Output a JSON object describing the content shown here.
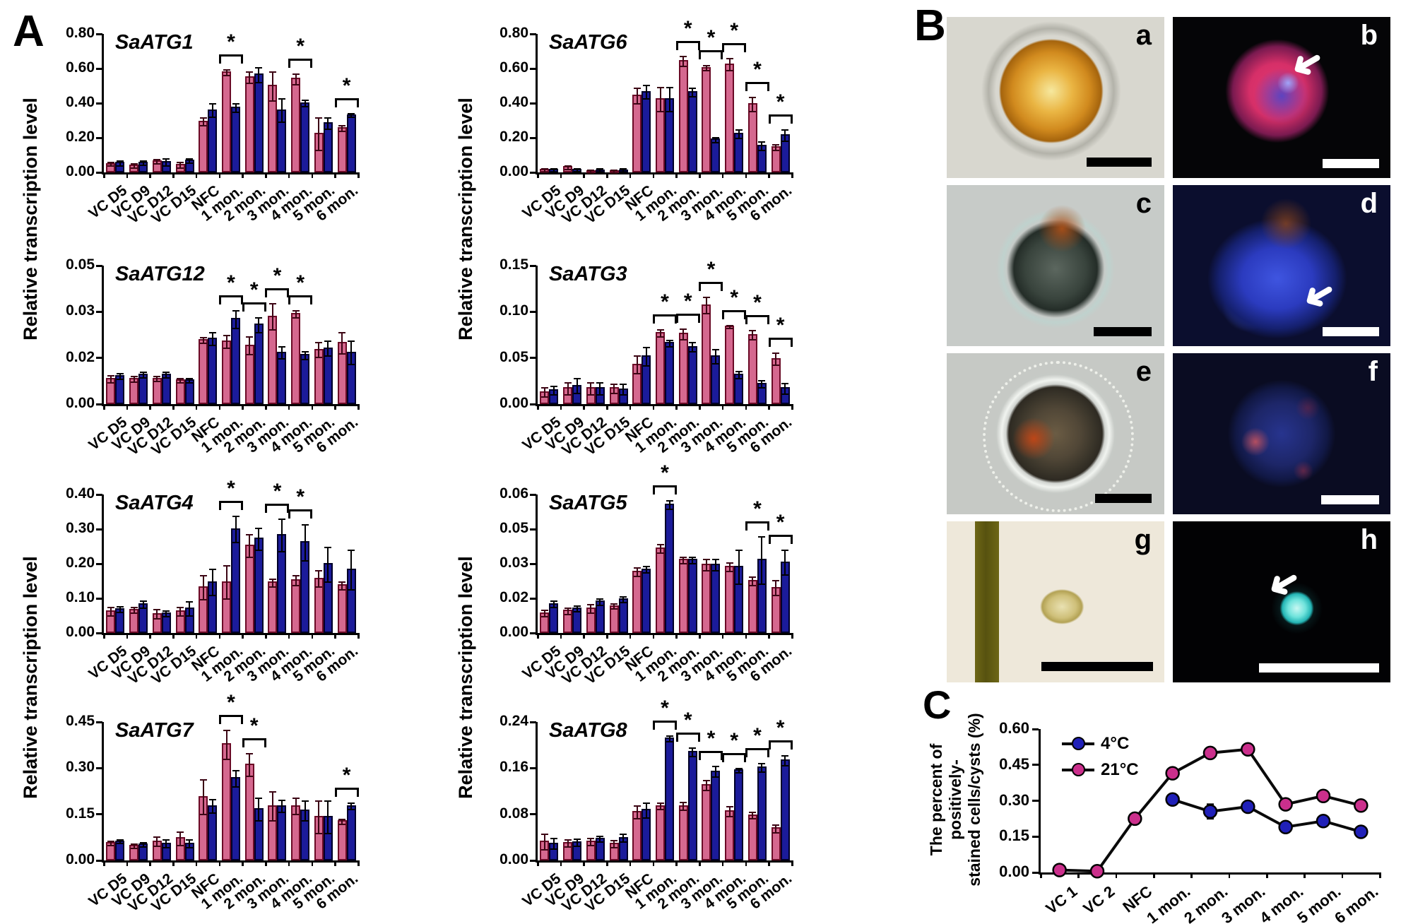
{
  "figure": {
    "panels": {
      "a": "A",
      "b": "B",
      "c": "C"
    },
    "y_axis_label": "Relative transcription level",
    "icons": {
      "arrow": "➜"
    },
    "series_colors": {
      "pink": "#d5688f",
      "blue": "#1b1b9a"
    }
  },
  "chart_data": [
    {
      "type": "bar",
      "title": "SaATG1",
      "ymax": 0.8,
      "yticks": [
        "0.00",
        "0.20",
        "0.40",
        "0.60",
        "0.80"
      ],
      "categories": [
        "VC D5",
        "VC D9",
        "VC D12",
        "VC D15",
        "NFC",
        "1 mon.",
        "2 mon.",
        "3 mon.",
        "4 mon.",
        "5 mon.",
        "6 mon."
      ],
      "series": [
        {
          "name": "pink",
          "color": "#d5688f",
          "border": "#6b0a26",
          "err_color": "#3c0514",
          "values": [
            0.055,
            0.045,
            0.07,
            0.05,
            0.3,
            0.585,
            0.555,
            0.505,
            0.545,
            0.23,
            0.26
          ],
          "errors": [
            0.008,
            0.008,
            0.008,
            0.012,
            0.02,
            0.012,
            0.03,
            0.08,
            0.025,
            0.09,
            0.012
          ]
        },
        {
          "name": "blue",
          "color": "#1b1b9a",
          "border": "#000028",
          "err_color": "#000000",
          "values": [
            0.06,
            0.06,
            0.065,
            0.075,
            0.365,
            0.38,
            0.57,
            0.365,
            0.405,
            0.29,
            0.335
          ],
          "errors": [
            0.01,
            0.008,
            0.015,
            0.008,
            0.035,
            0.02,
            0.04,
            0.065,
            0.015,
            0.03,
            0.006
          ]
        }
      ],
      "sig_categories": [
        "1 mon.",
        "4 mon.",
        "6 mon."
      ]
    },
    {
      "type": "bar",
      "title": "SaATG6",
      "ymax": 0.8,
      "yticks": [
        "0.00",
        "0.20",
        "0.40",
        "0.60",
        "0.80"
      ],
      "categories": [
        "VC D5",
        "VC D9",
        "VC D12",
        "VC D15",
        "NFC",
        "1 mon.",
        "2 mon.",
        "3 mon.",
        "4 mon.",
        "5 mon.",
        "6 mon."
      ],
      "series": [
        {
          "name": "pink",
          "color": "#d5688f",
          "border": "#6b0a26",
          "err_color": "#3c0514",
          "values": [
            0.02,
            0.035,
            0.012,
            0.012,
            0.45,
            0.43,
            0.65,
            0.61,
            0.63,
            0.4,
            0.15
          ],
          "errors": [
            0.006,
            0.006,
            0.004,
            0.004,
            0.04,
            0.065,
            0.025,
            0.012,
            0.03,
            0.035,
            0.012
          ]
        },
        {
          "name": "blue",
          "color": "#1b1b9a",
          "border": "#000028",
          "err_color": "#000000",
          "values": [
            0.02,
            0.02,
            0.018,
            0.018,
            0.47,
            0.43,
            0.47,
            0.195,
            0.23,
            0.16,
            0.22
          ],
          "errors": [
            0.006,
            0.005,
            0.005,
            0.005,
            0.035,
            0.065,
            0.02,
            0.01,
            0.02,
            0.02,
            0.03
          ]
        }
      ],
      "sig_categories": [
        "2 mon.",
        "3 mon.",
        "4 mon.",
        "5 mon.",
        "6 mon."
      ]
    },
    {
      "type": "bar",
      "title": "SaATG12",
      "ymax": 0.05,
      "yticks": [
        "0.00",
        "0.02",
        "0.03",
        "0.05"
      ],
      "categories": [
        "VC D5",
        "VC D9",
        "VC D12",
        "VC D15",
        "NFC",
        "1 mon.",
        "2 mon.",
        "3 mon.",
        "4 mon.",
        "5 mon.",
        "6 mon."
      ],
      "series": [
        {
          "name": "pink",
          "color": "#d5688f",
          "border": "#6b0a26",
          "err_color": "#3c0514",
          "values": [
            0.0095,
            0.0095,
            0.0095,
            0.009,
            0.0235,
            0.023,
            0.0215,
            0.032,
            0.033,
            0.02,
            0.0225
          ],
          "errors": [
            0.001,
            0.0008,
            0.0006,
            0.0005,
            0.0008,
            0.002,
            0.003,
            0.0045,
            0.001,
            0.0025,
            0.0035
          ]
        },
        {
          "name": "blue",
          "color": "#1b1b9a",
          "border": "#000028",
          "err_color": "#000000",
          "values": [
            0.0105,
            0.011,
            0.011,
            0.009,
            0.024,
            0.031,
            0.029,
            0.019,
            0.018,
            0.0205,
            0.019
          ],
          "errors": [
            0.0008,
            0.0008,
            0.0008,
            0.0005,
            0.002,
            0.003,
            0.0025,
            0.002,
            0.0012,
            0.0025,
            0.004
          ]
        }
      ],
      "sig_categories": [
        "1 mon.",
        "2 mon.",
        "3 mon.",
        "4 mon."
      ]
    },
    {
      "type": "bar",
      "title": "SaATG3",
      "ymax": 0.15,
      "yticks": [
        "0.00",
        "0.05",
        "0.10",
        "0.15"
      ],
      "categories": [
        "VC D5",
        "VC D9",
        "VC D12",
        "VC D15",
        "NFC",
        "1 mon.",
        "2 mon.",
        "3 mon.",
        "4 mon.",
        "5 mon.",
        "6 mon."
      ],
      "series": [
        {
          "name": "pink",
          "color": "#d5688f",
          "border": "#6b0a26",
          "err_color": "#3c0514",
          "values": [
            0.014,
            0.018,
            0.018,
            0.018,
            0.044,
            0.078,
            0.077,
            0.108,
            0.085,
            0.076,
            0.05
          ],
          "errors": [
            0.004,
            0.006,
            0.006,
            0.004,
            0.009,
            0.003,
            0.005,
            0.008,
            0.001,
            0.004,
            0.006
          ]
        },
        {
          "name": "blue",
          "color": "#1b1b9a",
          "border": "#000028",
          "err_color": "#000000",
          "values": [
            0.016,
            0.021,
            0.018,
            0.017,
            0.053,
            0.067,
            0.063,
            0.053,
            0.033,
            0.023,
            0.018
          ],
          "errors": [
            0.004,
            0.007,
            0.006,
            0.005,
            0.009,
            0.003,
            0.004,
            0.007,
            0.003,
            0.003,
            0.005
          ]
        }
      ],
      "sig_categories": [
        "1 mon.",
        "2 mon.",
        "3 mon.",
        "4 mon.",
        "5 mon.",
        "6 mon."
      ]
    },
    {
      "type": "bar",
      "title": "SaATG4",
      "ymax": 0.4,
      "yticks": [
        "0.00",
        "0.10",
        "0.20",
        "0.30",
        "0.40"
      ],
      "categories": [
        "VC D5",
        "VC D9",
        "VC D12",
        "VC D15",
        "NFC",
        "1 mon.",
        "2 mon.",
        "3 mon.",
        "4 mon.",
        "5 mon.",
        "6 mon."
      ],
      "series": [
        {
          "name": "pink",
          "color": "#d5688f",
          "border": "#6b0a26",
          "err_color": "#3c0514",
          "values": [
            0.065,
            0.07,
            0.058,
            0.065,
            0.135,
            0.15,
            0.255,
            0.148,
            0.155,
            0.16,
            0.14
          ],
          "errors": [
            0.01,
            0.006,
            0.012,
            0.01,
            0.033,
            0.045,
            0.03,
            0.01,
            0.013,
            0.022,
            0.01
          ]
        },
        {
          "name": "blue",
          "color": "#1b1b9a",
          "border": "#000028",
          "err_color": "#000000",
          "values": [
            0.072,
            0.085,
            0.06,
            0.073,
            0.15,
            0.303,
            0.275,
            0.285,
            0.265,
            0.202,
            0.185
          ],
          "errors": [
            0.006,
            0.008,
            0.006,
            0.018,
            0.035,
            0.035,
            0.03,
            0.045,
            0.05,
            0.048,
            0.055
          ]
        }
      ],
      "sig_categories": [
        "1 mon.",
        "3 mon.",
        "4 mon."
      ]
    },
    {
      "type": "bar",
      "title": "SaATG5",
      "ymax": 0.06,
      "yticks": [
        "0.00",
        "0.02",
        "0.03",
        "0.05",
        "0.06"
      ],
      "categories": [
        "VC D5",
        "VC D9",
        "VC D12",
        "VC D15",
        "NFC",
        "1 mon.",
        "2 mon.",
        "3 mon.",
        "4 mon.",
        "5 mon.",
        "6 mon."
      ],
      "series": [
        {
          "name": "pink",
          "color": "#d5688f",
          "border": "#6b0a26",
          "err_color": "#3c0514",
          "values": [
            0.009,
            0.01,
            0.011,
            0.012,
            0.027,
            0.037,
            0.032,
            0.03,
            0.029,
            0.023,
            0.02
          ],
          "errors": [
            0.001,
            0.001,
            0.0015,
            0.0008,
            0.0015,
            0.0015,
            0.001,
            0.002,
            0.0015,
            0.0015,
            0.003
          ]
        },
        {
          "name": "blue",
          "color": "#1b1b9a",
          "border": "#000028",
          "err_color": "#000000",
          "values": [
            0.013,
            0.011,
            0.014,
            0.015,
            0.028,
            0.056,
            0.032,
            0.03,
            0.029,
            0.032,
            0.031
          ],
          "errors": [
            0.001,
            0.001,
            0.001,
            0.0008,
            0.001,
            0.0015,
            0.001,
            0.002,
            0.007,
            0.01,
            0.005
          ]
        }
      ],
      "sig_categories": [
        "1 mon.",
        "5 mon.",
        "6 mon."
      ]
    },
    {
      "type": "bar",
      "title": "SaATG7",
      "ymax": 0.45,
      "yticks": [
        "0.00",
        "0.15",
        "0.30",
        "0.45"
      ],
      "categories": [
        "VC D5",
        "VC D9",
        "VC D12",
        "VC D15",
        "NFC",
        "1 mon.",
        "2 mon.",
        "3 mon.",
        "4 mon.",
        "5 mon.",
        "6 mon."
      ],
      "series": [
        {
          "name": "pink",
          "color": "#d5688f",
          "border": "#6b0a26",
          "err_color": "#3c0514",
          "values": [
            0.06,
            0.05,
            0.065,
            0.075,
            0.21,
            0.38,
            0.315,
            0.18,
            0.18,
            0.145,
            0.13
          ],
          "errors": [
            0.004,
            0.005,
            0.012,
            0.02,
            0.055,
            0.045,
            0.035,
            0.045,
            0.025,
            0.05,
            0.006
          ]
        },
        {
          "name": "blue",
          "color": "#1b1b9a",
          "border": "#000028",
          "err_color": "#000000",
          "values": [
            0.065,
            0.055,
            0.058,
            0.058,
            0.18,
            0.27,
            0.17,
            0.18,
            0.165,
            0.145,
            0.18
          ],
          "errors": [
            0.004,
            0.005,
            0.01,
            0.01,
            0.02,
            0.025,
            0.035,
            0.018,
            0.03,
            0.05,
            0.008
          ]
        }
      ],
      "sig_categories": [
        "1 mon.",
        "2 mon.",
        "6 mon."
      ]
    },
    {
      "type": "bar",
      "title": "SaATG8",
      "ymax": 0.24,
      "yticks": [
        "0.00",
        "0.08",
        "0.16",
        "0.24"
      ],
      "categories": [
        "VC D5",
        "VC D9",
        "VC D12",
        "VC D15",
        "NFC",
        "1 mon.",
        "2 mon.",
        "3 mon.",
        "4 mon.",
        "5 mon.",
        "6 mon."
      ],
      "series": [
        {
          "name": "pink",
          "color": "#d5688f",
          "border": "#6b0a26",
          "err_color": "#3c0514",
          "values": [
            0.034,
            0.032,
            0.034,
            0.031,
            0.086,
            0.096,
            0.096,
            0.132,
            0.087,
            0.08,
            0.057
          ],
          "errors": [
            0.012,
            0.005,
            0.005,
            0.005,
            0.01,
            0.004,
            0.006,
            0.007,
            0.007,
            0.004,
            0.005
          ]
        },
        {
          "name": "blue",
          "color": "#1b1b9a",
          "border": "#000028",
          "err_color": "#000000",
          "values": [
            0.031,
            0.033,
            0.039,
            0.041,
            0.089,
            0.213,
            0.19,
            0.156,
            0.158,
            0.163,
            0.175
          ],
          "errors": [
            0.008,
            0.005,
            0.004,
            0.006,
            0.012,
            0.004,
            0.006,
            0.008,
            0.003,
            0.006,
            0.007
          ]
        }
      ],
      "sig_categories": [
        "1 mon.",
        "2 mon.",
        "3 mon.",
        "4 mon.",
        "5 mon.",
        "6 mon."
      ]
    },
    {
      "type": "line",
      "title": "",
      "ylabel_line1": "The percent of positively-",
      "ylabel_line2": "stained cells/cysts (%)",
      "ymax": 0.6,
      "yticks": [
        "0.00",
        "0.15",
        "0.30",
        "0.45",
        "0.60"
      ],
      "categories": [
        "VC 1",
        "VC 2",
        "NFC",
        "1 mon.",
        "2 mon.",
        "3 mon.",
        "4 mon.",
        "5 mon.",
        "6 mon."
      ],
      "legend_position": "top-left",
      "series": [
        {
          "name": "4°C",
          "color": "#2020b8",
          "values": [
            null,
            null,
            null,
            0.305,
            0.255,
            0.275,
            0.19,
            0.215,
            0.17
          ],
          "errors": [
            null,
            null,
            null,
            0.018,
            0.03,
            0.022,
            0.008,
            0.008,
            0.008
          ]
        },
        {
          "name": "21°C",
          "color": "#cb2f8c",
          "values": [
            0.01,
            0.005,
            0.225,
            0.415,
            0.5,
            0.515,
            0.285,
            0.32,
            0.28
          ],
          "errors": [
            0.004,
            0.004,
            0.008,
            0.01,
            0.015,
            0.02,
            0.008,
            0.022,
            0.01
          ]
        }
      ]
    }
  ],
  "panel_b": {
    "images": [
      {
        "label": "a",
        "type": "bright-field cyst",
        "scalebar": "black",
        "arrow": false
      },
      {
        "label": "b",
        "type": "fluorescence red-blue cell",
        "scalebar": "white",
        "arrow": true
      },
      {
        "label": "c",
        "type": "bright-field cyst",
        "scalebar": "black",
        "arrow": false
      },
      {
        "label": "d",
        "type": "fluorescence blue cell",
        "scalebar": "white",
        "arrow": true
      },
      {
        "label": "e",
        "type": "bright-field spiny cyst",
        "scalebar": "black",
        "arrow": false
      },
      {
        "label": "f",
        "type": "fluorescence dim blue cell",
        "scalebar": "white",
        "arrow": false
      },
      {
        "label": "g",
        "type": "bright-field cyst beside hair",
        "scalebar": "black",
        "arrow": false
      },
      {
        "label": "h",
        "type": "fluorescence cyan-stained cyst",
        "scalebar": "white",
        "arrow": true
      }
    ]
  }
}
